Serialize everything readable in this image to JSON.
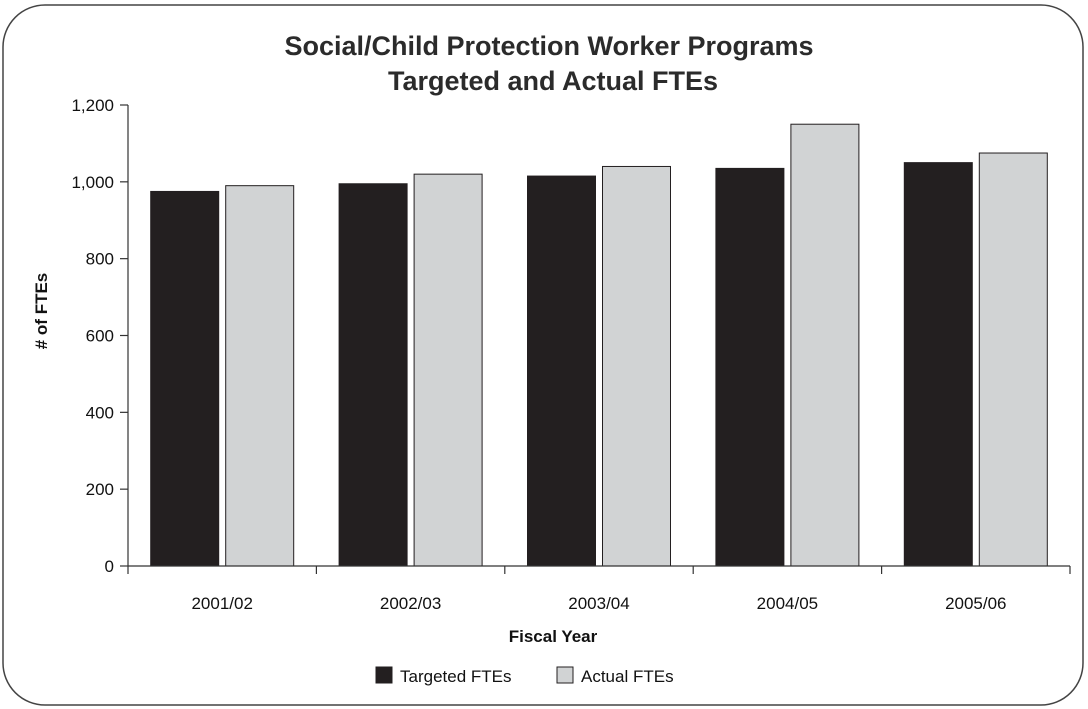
{
  "colors": {
    "frame": "#444444",
    "axis": "#333333",
    "targeted": "#231f20",
    "actual": "#d1d3d4",
    "bar_stroke": "#231f20"
  },
  "chart_data": {
    "type": "bar",
    "title": "Social/Child Protection Worker Programs",
    "subtitle": "Targeted and Actual FTEs",
    "xlabel": "Fiscal Year",
    "ylabel": "# of FTEs",
    "categories": [
      "2001/02",
      "2002/03",
      "2003/04",
      "2004/05",
      "2005/06"
    ],
    "series": [
      {
        "name": "Targeted FTEs",
        "values": [
          975,
          995,
          1015,
          1035,
          1050
        ]
      },
      {
        "name": "Actual FTEs",
        "values": [
          990,
          1020,
          1040,
          1150,
          1075
        ]
      }
    ],
    "ylim": [
      0,
      1200
    ],
    "yticks": [
      0,
      200,
      400,
      600,
      800,
      1000,
      1200
    ],
    "ytick_labels": [
      "0",
      "200",
      "400",
      "600",
      "800",
      "1,000",
      "1,200"
    ],
    "grid": false,
    "legend": "bottom-center"
  }
}
